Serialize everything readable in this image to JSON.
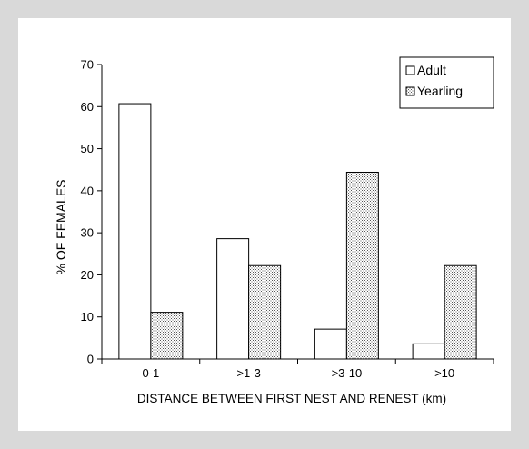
{
  "chart_data": {
    "type": "bar",
    "title": "",
    "xlabel": "DISTANCE BETWEEN FIRST NEST AND RENEST (km)",
    "ylabel": "% OF FEMALES",
    "categories": [
      "0-1",
      ">1-3",
      ">3-10",
      ">10"
    ],
    "ylim": [
      0,
      70
    ],
    "yticks": [
      0,
      10,
      20,
      30,
      40,
      50,
      60,
      70
    ],
    "grid": false,
    "legend_position": "top-right",
    "series": [
      {
        "name": "Adult",
        "values": [
          60.7,
          28.6,
          7.1,
          3.6
        ],
        "fill": "#ffffff",
        "pattern": "none"
      },
      {
        "name": "Yearling",
        "values": [
          11.1,
          22.2,
          44.4,
          22.2
        ],
        "fill": "#e6e6e6",
        "pattern": "dotted"
      }
    ]
  },
  "colors": {
    "background": "#d9d9d9",
    "panel": "#ffffff",
    "ink": "#000000"
  }
}
